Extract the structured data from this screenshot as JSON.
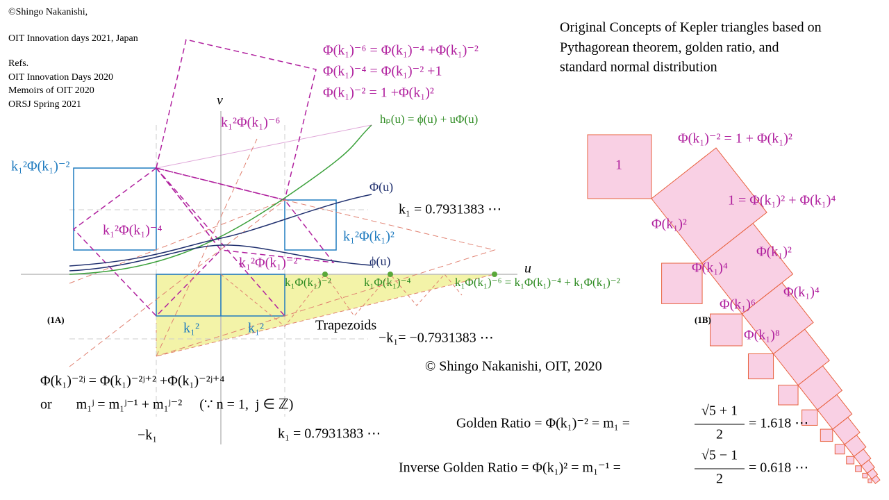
{
  "header": {
    "credit": [
      "©Shingo  Nakanishi,",
      "OIT Innovation  days 2021, Japan"
    ],
    "refs_title": "Refs.",
    "refs": [
      "OIT Innovation  Days 2020",
      "Memoirs  of OIT 2020",
      "ORSJ Spring  2021"
    ]
  },
  "title": [
    "Original  Concepts of Kepler triangles based on",
    "Pythagorean theorem, golden ratio, and",
    "standard normal distribution"
  ],
  "equations": [
    "Φ(k₁)⁻⁶ = Φ(k₁)⁻⁴ +Φ(k₁)⁻²",
    "Φ(k₁)⁻⁴ = Φ(k₁)⁻² +1",
    "Φ(k₁)⁻² = 1 +Φ(k₁)²"
  ],
  "figure_1a": {
    "label": "(1A)",
    "axis_u": "u",
    "axis_v": "v",
    "square_top": "k₁²Φ(k₁)⁻⁶",
    "h_p": "hₚ(u) = ϕ(u) + uΦ(u)",
    "cdf": "Φ(u)",
    "pdf": "ϕ(u)",
    "k1_right": "k₁ = 0.7931383 ⋯",
    "blue_left": "k₁²Φ(k₁)⁻²",
    "purple_left": "k₁²Φ(k₁)⁻⁴",
    "blue_right": "k₁²Φ(k₁)²",
    "purple_center": "k₁²Φ(k₁)⁻²",
    "green_labels": [
      "k₁Φ(k₁)⁻²",
      "k₁Φ(k₁)⁻⁴",
      "k₁Φ(k₁)⁻⁶ = k₁Φ(k₁)⁻⁴ + k₁Φ(k₁)⁻²"
    ],
    "k1_squares": [
      "k₁²",
      "k₁²"
    ],
    "trapezoids": "Trapezoids",
    "neg_k1": "−k₁= −0.7931383 ⋯",
    "recurrence": "Φ(k₁)⁻²ʲ = Φ(k₁)⁻²ʲ⁺² +Φ(k₁)⁻²ʲ⁺⁴",
    "recurrence_m": "or       m₁ʲ = m₁ʲ⁻¹ + m₁ʲ⁻²     (∵ n = 1,  j ∈ ℤ)",
    "neg_k1_short": "−k₁",
    "k1_bottom": "k₁ = 0.7931383 ⋯"
  },
  "copyright": "© Shingo  Nakanishi, OIT, 2020",
  "figure_1b": {
    "label": "(1B)",
    "one": "1",
    "hyp": "Φ(k₁)⁻² = 1 + Φ(k₁)²",
    "second": "1 = Φ(k₁)² + Φ(k₁)⁴",
    "left_labels": [
      "Φ(k₁)²",
      "Φ(k₁)⁴",
      "Φ(k₁)⁶",
      "Φ(k₁)⁸"
    ],
    "right_labels": [
      "Φ(k₁)²",
      "Φ(k₁)⁴"
    ]
  },
  "golden": {
    "lhs": "Golden Ratio = Φ(k₁)⁻² = m₁ =",
    "num": "√5 + 1",
    "den": "2",
    "rhs": "= 1.618 ⋯"
  },
  "inverse_golden": {
    "lhs": "Inverse Golden Ratio = Φ(k₁)² = m₁⁻¹ =",
    "num": "√5 − 1",
    "den": "2",
    "rhs": "= 0.618 ⋯"
  }
}
